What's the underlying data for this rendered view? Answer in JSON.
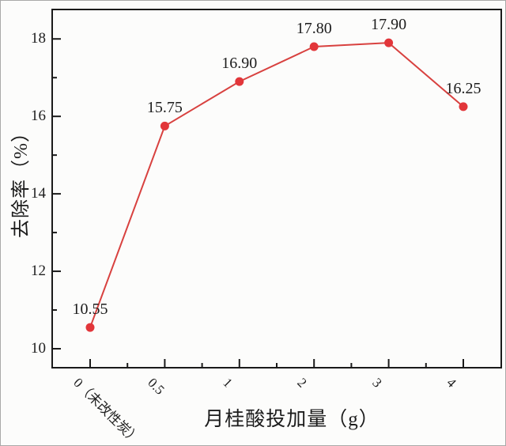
{
  "figure": {
    "background": "#fcfcfb",
    "outer_border_color": "#a9a9a9",
    "axis_color": "#1a1a1a",
    "text_color": "#1c1c1c"
  },
  "chart_data": {
    "type": "line",
    "title": "",
    "xlabel": "月桂酸投加量（g）",
    "ylabel": "去除率（%）",
    "categories": [
      "0（未改性炭）",
      "0.5",
      "1",
      "2",
      "3",
      "4"
    ],
    "values": [
      10.55,
      15.75,
      16.9,
      17.8,
      17.9,
      16.25
    ],
    "point_labels": [
      "10.55",
      "15.75",
      "16.90",
      "17.80",
      "17.90",
      "16.25"
    ],
    "series_name": "去除率",
    "y_major_ticks": [
      10,
      12,
      14,
      16,
      18
    ],
    "y_minor_ticks": [
      11,
      13,
      15,
      17
    ],
    "ylim": [
      9.51,
      18.76
    ],
    "grid": false,
    "legend_position": "none",
    "line_color": "#d8413f",
    "marker_color": "#e2363a",
    "marker_shape": "circle",
    "x_minor_ticks_between": true
  }
}
